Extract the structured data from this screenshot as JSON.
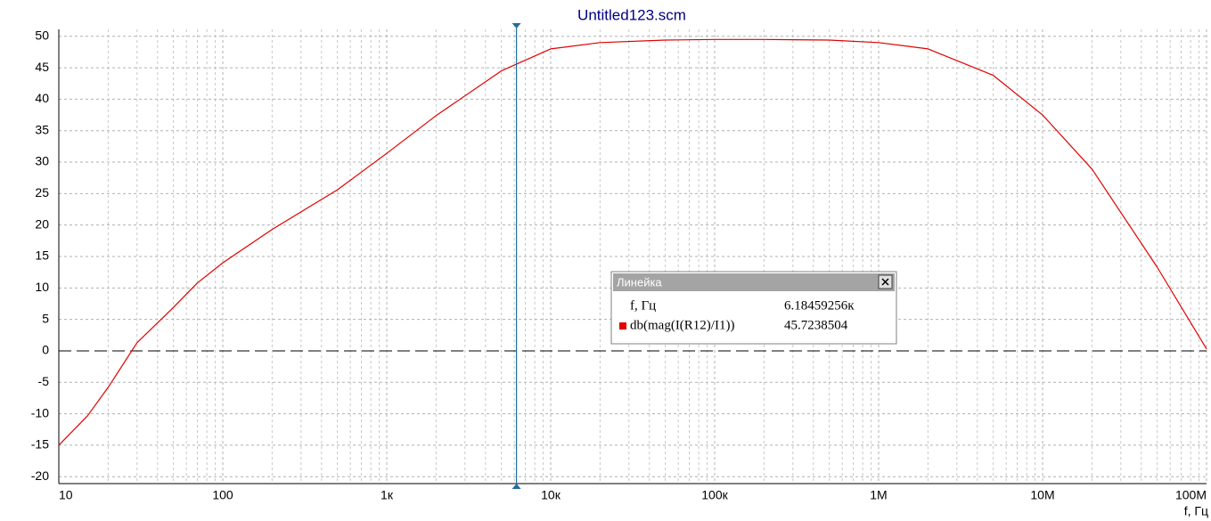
{
  "chart_data": {
    "type": "line",
    "title": "Untitled123.scm",
    "x_label": "f, Гц",
    "x": [
      10,
      15,
      20,
      30,
      50,
      70,
      100,
      200,
      500,
      1000,
      2000,
      5000,
      10000,
      20000,
      50000,
      100000,
      200000,
      500000,
      1000000,
      2000000,
      5000000,
      10000000,
      20000000,
      50000000,
      100000000
    ],
    "series": [
      {
        "name": "db(mag(I(R12)/I1))",
        "color": "#e00000",
        "values": [
          -15,
          -10.3,
          -5.8,
          1.3,
          6.9,
          10.8,
          14,
          19.3,
          25.6,
          31.4,
          37.4,
          44.5,
          48,
          49,
          49.4,
          49.5,
          49.5,
          49.4,
          49,
          48,
          43.8,
          37.5,
          28.9,
          13.3,
          0.3
        ]
      }
    ],
    "xlim": [
      10,
      100000000
    ],
    "xscale": "log",
    "xticks": [
      10,
      100,
      {
        "value": 1000,
        "label": "1к"
      },
      {
        "value": 10000,
        "label": "10к"
      },
      {
        "value": 100000,
        "label": "100к"
      },
      {
        "value": 1000000,
        "label": "1М"
      },
      {
        "value": 10000000,
        "label": "10М"
      },
      {
        "value": 100000000,
        "label": "100М"
      }
    ],
    "ylim": [
      -21.1,
      51.1
    ],
    "yticks": [
      -20,
      -15,
      -10,
      -5,
      0,
      5,
      10,
      15,
      20,
      25,
      30,
      35,
      40,
      45,
      50
    ],
    "grid": true,
    "cursor": {
      "title": "Линейка",
      "x_name": "f, Гц",
      "x": 6184.59256,
      "x_label": "6.18459256к",
      "y": 45.7238504
    }
  }
}
